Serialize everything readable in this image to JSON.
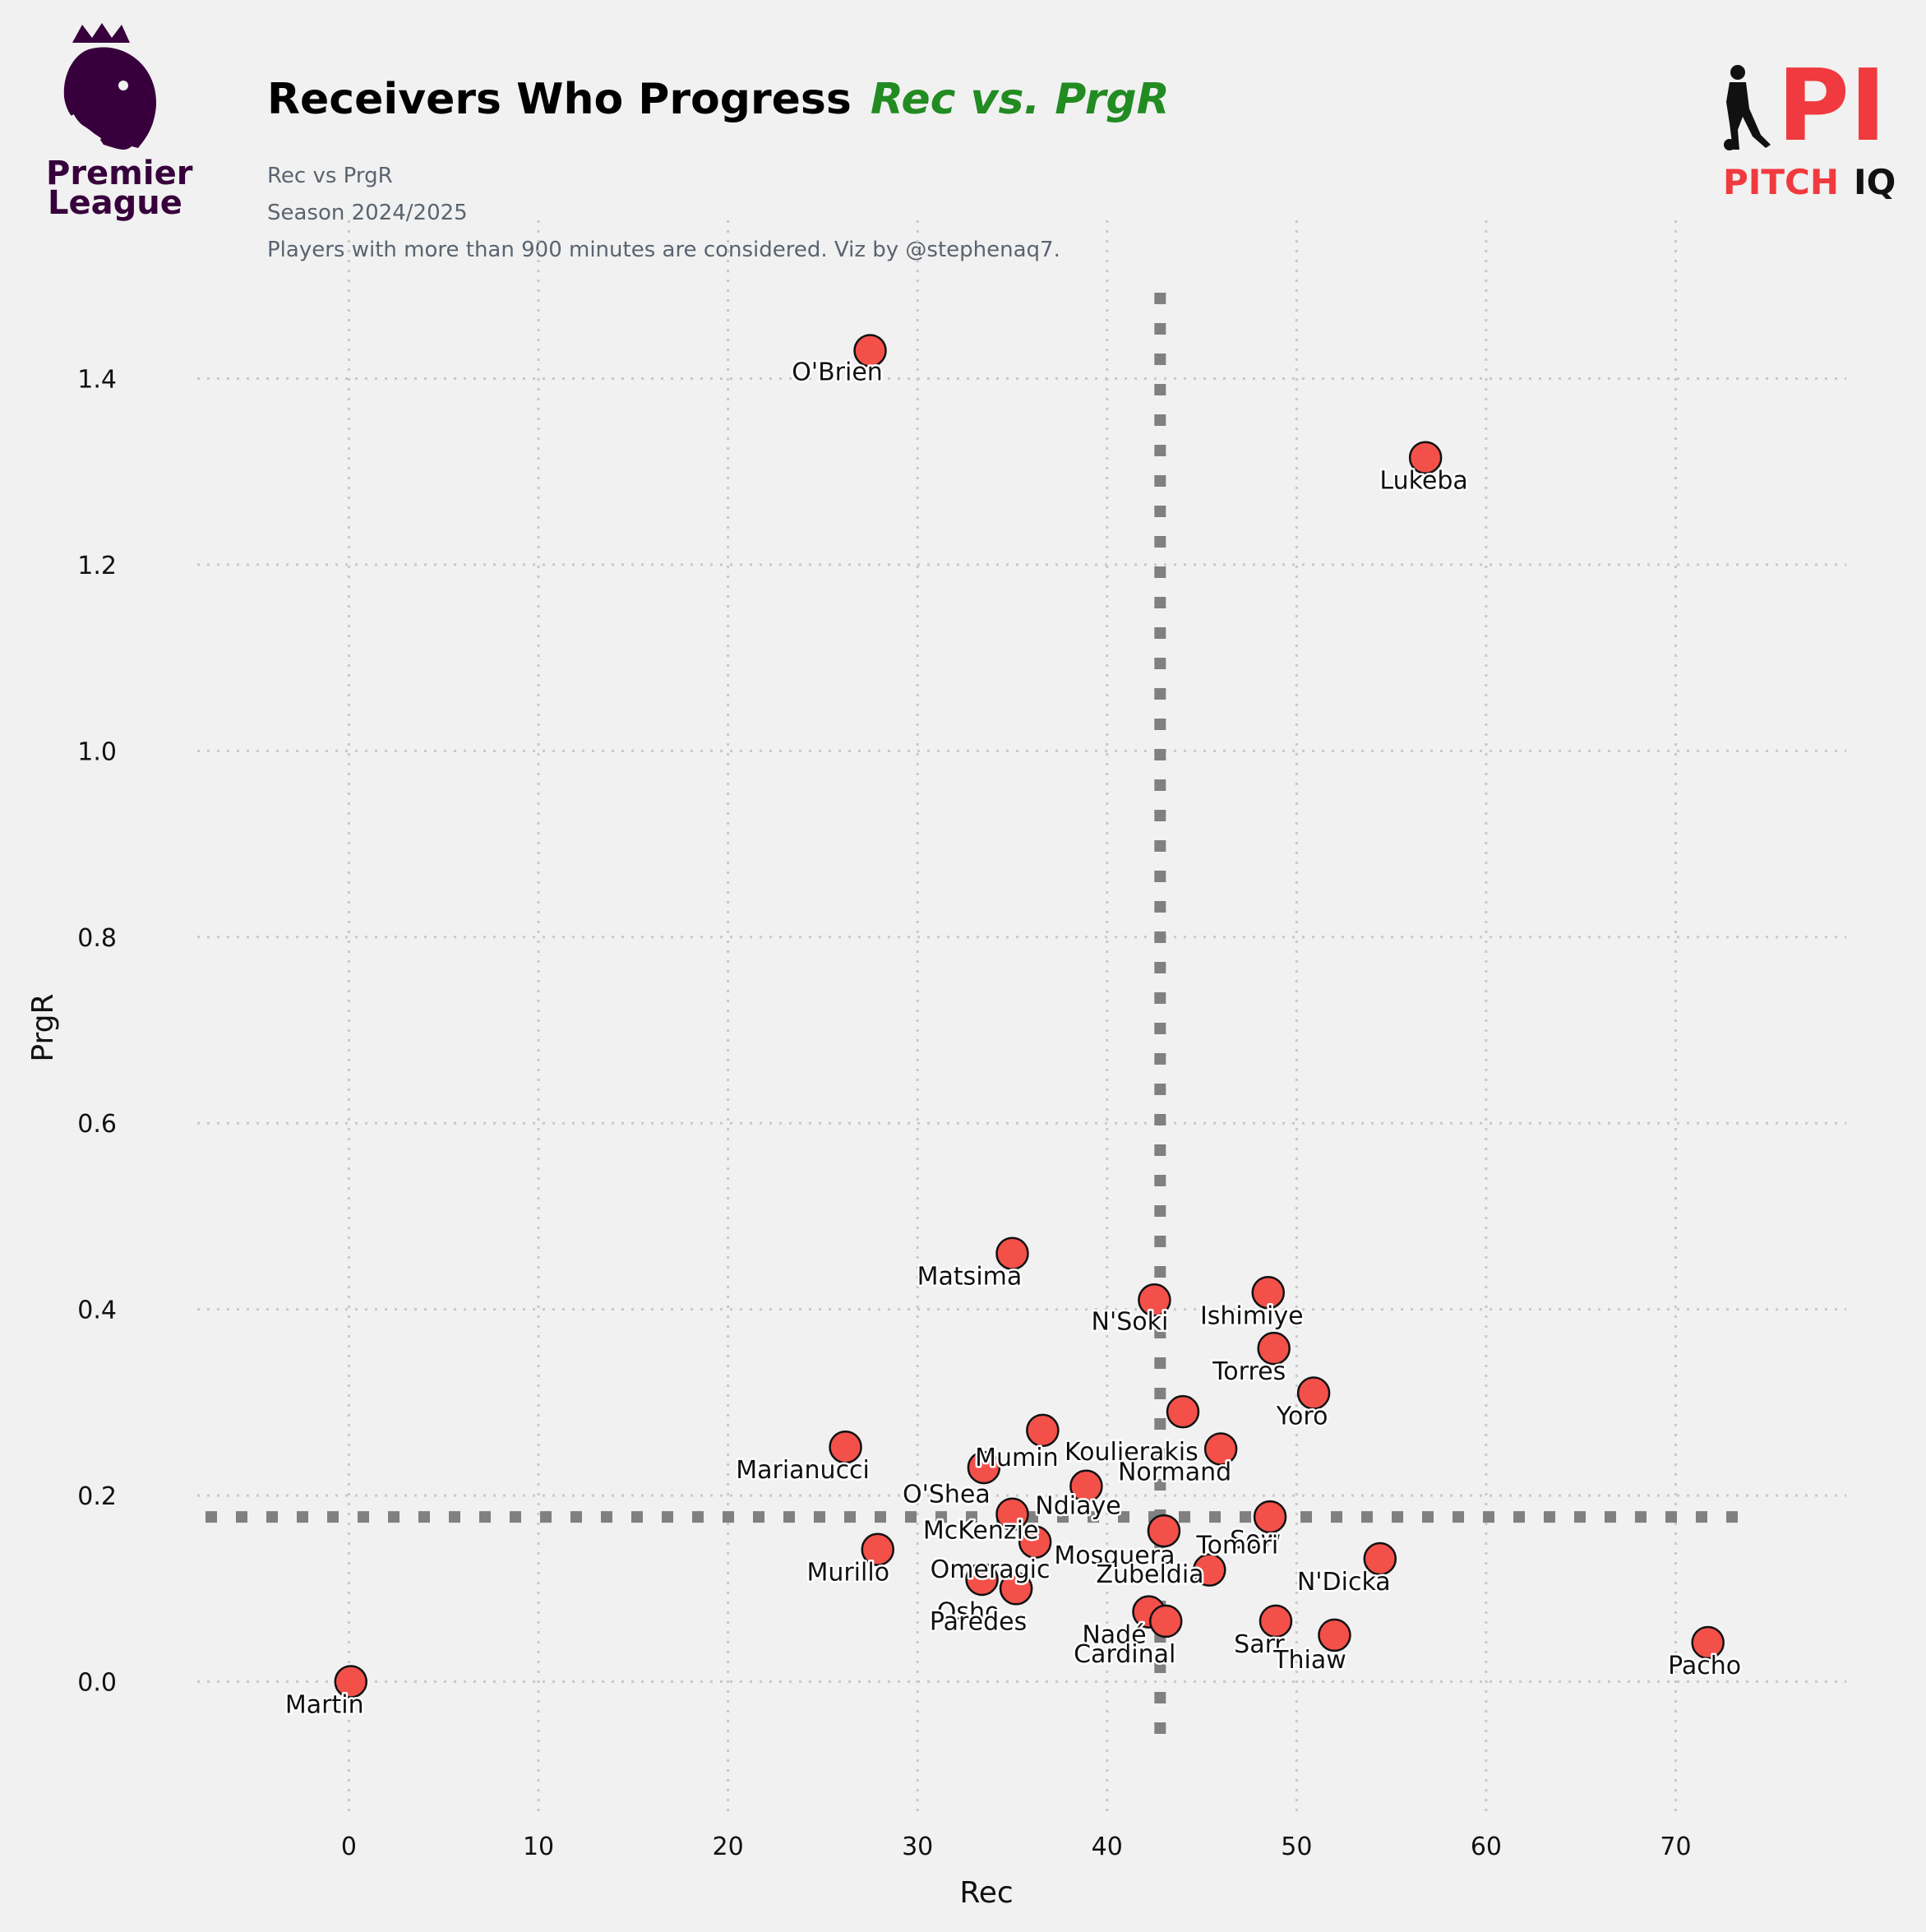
{
  "header": {
    "title_main": "Receivers Who Progress",
    "title_accent": "Rec vs. PrgR",
    "subtitle_1": "Rec vs PrgR",
    "subtitle_2": "Season 2024/2025",
    "subtitle_3": "Players with more than 900 minutes are considered. Viz by @stephenaq7."
  },
  "logos": {
    "left_line1": "Premier",
    "left_line2": "League",
    "right_mark": "PI",
    "right_word1": "PITCH",
    "right_word2": "IQ"
  },
  "colors": {
    "point": "#f3504a",
    "accent": "#228b22",
    "reference_line": "#808080",
    "background": "#f1f1f1",
    "pl_purple": "#37003c",
    "piq_red": "#f03a3f"
  },
  "chart_data": {
    "type": "scatter",
    "xlabel": "Rec",
    "ylabel": "PrgR",
    "xlim": [
      -8,
      79
    ],
    "ylim": [
      -0.14,
      1.57
    ],
    "xticks": [
      0,
      10,
      20,
      30,
      40,
      50,
      60,
      70
    ],
    "yticks": [
      0.0,
      0.2,
      0.4,
      0.6,
      0.8,
      1.0,
      1.2,
      1.4
    ],
    "ytick_labels": [
      "0.0",
      "0.2",
      "0.4",
      "0.6",
      "0.8",
      "1.0",
      "1.2",
      "1.4"
    ],
    "grid": true,
    "reference_lines": {
      "x": 42.8,
      "y": 0.177
    },
    "points": [
      {
        "name": "O'Brien",
        "x": 27.5,
        "y": 1.43
      },
      {
        "name": "Lukeba",
        "x": 56.8,
        "y": 1.315
      },
      {
        "name": "Matsima",
        "x": 35.0,
        "y": 0.46
      },
      {
        "name": "N'Soki",
        "x": 42.5,
        "y": 0.41
      },
      {
        "name": "Ishimiye",
        "x": 48.5,
        "y": 0.418
      },
      {
        "name": "Torres",
        "x": 48.8,
        "y": 0.358
      },
      {
        "name": "Yoro",
        "x": 50.9,
        "y": 0.31
      },
      {
        "name": "Koulierakis",
        "x": 36.6,
        "y": 0.27
      },
      {
        "name": "Marianucci",
        "x": 26.2,
        "y": 0.252
      },
      {
        "name": "Mumin",
        "x": 33.5,
        "y": 0.23
      },
      {
        "name": "Normand",
        "x": 46.0,
        "y": 0.25
      },
      {
        "name": "O'Shea",
        "x": 38.9,
        "y": 0.21
      },
      {
        "name": "Ndiaye",
        "x": 35.0,
        "y": 0.18
      },
      {
        "name": "McKenzie",
        "x": 36.2,
        "y": 0.15
      },
      {
        "name": "Murillo",
        "x": 27.9,
        "y": 0.142
      },
      {
        "name": "Mosquera",
        "x": 43.0,
        "y": 0.162
      },
      {
        "name": "Sow",
        "x": 48.6,
        "y": 0.177
      },
      {
        "name": "Tomori",
        "x": 45.4,
        "y": 0.12
      },
      {
        "name": "N'Dicka",
        "x": 54.4,
        "y": 0.132
      },
      {
        "name": "Omeragic",
        "x": 33.4,
        "y": 0.11
      },
      {
        "name": "Osho",
        "x": 35.2,
        "y": 0.1
      },
      {
        "name": "Paredes",
        "x": 35.2,
        "y": 0.1
      },
      {
        "name": "Zubeldia",
        "x": 44.0,
        "y": 0.29
      },
      {
        "name": "Nadé",
        "x": 42.2,
        "y": 0.075
      },
      {
        "name": "Cardinal",
        "x": 43.1,
        "y": 0.065
      },
      {
        "name": "Sarr",
        "x": 48.9,
        "y": 0.065
      },
      {
        "name": "Thiaw",
        "x": 52.0,
        "y": 0.05
      },
      {
        "name": "Pacho",
        "x": 71.7,
        "y": 0.042
      },
      {
        "name": "Martin",
        "x": 0.1,
        "y": 0.0
      }
    ]
  }
}
